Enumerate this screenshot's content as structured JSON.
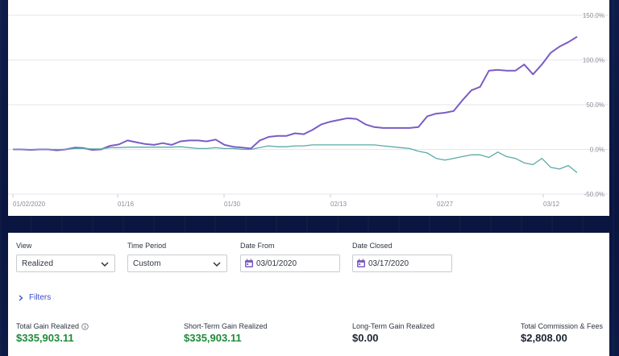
{
  "chart_data": {
    "type": "line",
    "x_tick_labels": [
      "01/02/2020",
      "01/16",
      "01/30",
      "02/13",
      "02/27",
      "03/12"
    ],
    "y_tick_labels": [
      "150.0%",
      "100.0%",
      "50.0%",
      "0.0%",
      "-50.0%"
    ],
    "ylim": [
      -50,
      150
    ],
    "grid": true,
    "series": [
      {
        "color": "#7c5cc4",
        "x": [
          0,
          1,
          2,
          3,
          4,
          5,
          6,
          7,
          8,
          9,
          10,
          11,
          12,
          13,
          14,
          15,
          16,
          17,
          18,
          19,
          20,
          21,
          22,
          23,
          24,
          25,
          26,
          27,
          28,
          29,
          30,
          31,
          32,
          33,
          34,
          35,
          36,
          37,
          38,
          39,
          40,
          41,
          42,
          43,
          44,
          45,
          46,
          47,
          48,
          49,
          50,
          51,
          52,
          53,
          54,
          55,
          56,
          57,
          58,
          59,
          60,
          61,
          62,
          63,
          64,
          65,
          66,
          67,
          68,
          69,
          70,
          71,
          72,
          73,
          74,
          75
        ],
        "values": [
          0,
          0,
          -0.5,
          0,
          0,
          -1,
          0,
          2,
          1.5,
          -0.5,
          0,
          4,
          5.5,
          10,
          8,
          6,
          5,
          7,
          5,
          9,
          10,
          10,
          9,
          11,
          5,
          3,
          2,
          1,
          10,
          14,
          15,
          15,
          18,
          17,
          22,
          28,
          31,
          33,
          35,
          34,
          28,
          25,
          24,
          24,
          24,
          24,
          25,
          37,
          40,
          41,
          43,
          55,
          66,
          70,
          88,
          89,
          88,
          88,
          95,
          84,
          95,
          108,
          115,
          120,
          126,
          126,
          126,
          126,
          126,
          126,
          126,
          126,
          126,
          126,
          126,
          126
        ],
        "stop_index": 64
      },
      {
        "color": "#5aa9a8",
        "x": [
          0,
          1,
          2,
          3,
          4,
          5,
          6,
          7,
          8,
          9,
          10,
          11,
          12,
          13,
          14,
          15,
          16,
          17,
          18,
          19,
          20,
          21,
          22,
          23,
          24,
          25,
          26,
          27,
          28,
          29,
          30,
          31,
          32,
          33,
          34,
          35,
          36,
          37,
          38,
          39,
          40,
          41,
          42,
          43,
          44,
          45,
          46,
          47,
          48,
          49,
          50,
          51,
          52,
          53,
          54,
          55,
          56,
          57,
          58,
          59,
          60,
          61,
          62,
          63,
          64
        ],
        "values": [
          0,
          0,
          0,
          0,
          0,
          0,
          0,
          1,
          1,
          0.5,
          0.5,
          2,
          2,
          2.5,
          2.5,
          2.5,
          2.5,
          2.5,
          2.5,
          3,
          2,
          1,
          1,
          2,
          1,
          1,
          0,
          0,
          2,
          4,
          3,
          3,
          4,
          4,
          5,
          5,
          5,
          5,
          5,
          5,
          5,
          5,
          4,
          3,
          2,
          1,
          -2,
          -4,
          -10,
          -12,
          -10,
          -8,
          -6,
          -6,
          -9,
          -3,
          -8,
          -10,
          -15,
          -17,
          -10,
          -20,
          -22,
          -18,
          -26
        ]
      }
    ]
  },
  "controls": {
    "view": {
      "label": "View",
      "value": "Realized"
    },
    "time_period": {
      "label": "Time Period",
      "value": "Custom"
    },
    "date_from": {
      "label": "Date From",
      "value": "03/01/2020"
    },
    "date_closed": {
      "label": "Date Closed",
      "value": "03/17/2020"
    },
    "filters_label": "Filters"
  },
  "stats": [
    {
      "label": "Total Gain Realized",
      "value": "$335,903.11",
      "color": "#1f8a3a",
      "info_icon": "info-icon"
    },
    {
      "label": "Short-Term Gain Realized",
      "value": "$335,903.11",
      "color": "#1f8a3a"
    },
    {
      "label": "Long-Term Gain Realized",
      "value": "$0.00",
      "color": "#1d2433"
    },
    {
      "label": "Total Commission & Fees",
      "value": "$2,808.00",
      "color": "#1d2433"
    }
  ],
  "colors": {
    "accent": "#7c5cc4",
    "link": "#3b4fc4",
    "positive": "#1f8a3a"
  }
}
